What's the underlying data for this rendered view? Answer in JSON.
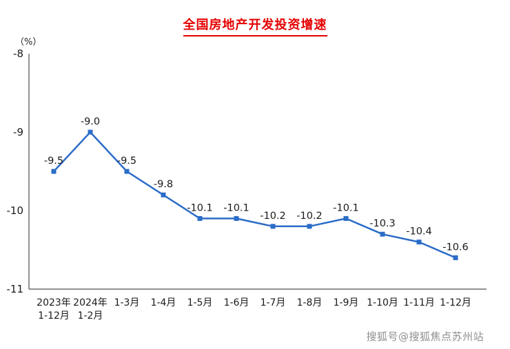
{
  "chart_data": {
    "type": "line",
    "title": "全国房地产开发投资增速",
    "unit_label": "（%）",
    "categories": [
      [
        "2023年",
        "1-12月"
      ],
      [
        "2024年",
        "1-2月"
      ],
      [
        "1-3月"
      ],
      [
        "1-4月"
      ],
      [
        "1-5月"
      ],
      [
        "1-6月"
      ],
      [
        "1-7月"
      ],
      [
        "1-8月"
      ],
      [
        "1-9月"
      ],
      [
        "1-10月"
      ],
      [
        "1-11月"
      ],
      [
        "1-12月"
      ]
    ],
    "values": [
      -9.5,
      -9.0,
      -9.5,
      -9.8,
      -10.1,
      -10.1,
      -10.2,
      -10.2,
      -10.1,
      -10.3,
      -10.4,
      -10.6
    ],
    "data_labels": [
      "-9.5",
      "-9.0",
      "-9.5",
      "-9.8",
      "-10.1",
      "-10.1",
      "-10.2",
      "-10.2",
      "-10.1",
      "-10.3",
      "-10.4",
      "-10.6"
    ],
    "ylim": [
      -11,
      -8
    ],
    "yticks": [
      -8,
      -9,
      -10,
      -11
    ],
    "line_color": "#2b6cc8",
    "title_color": "#e60000",
    "axis_color": "#4d4d4d",
    "label_color": "#1a1a1a",
    "grid": false,
    "legend": "none"
  },
  "watermark": {
    "text": "搜狐号@搜狐焦点苏州站"
  }
}
